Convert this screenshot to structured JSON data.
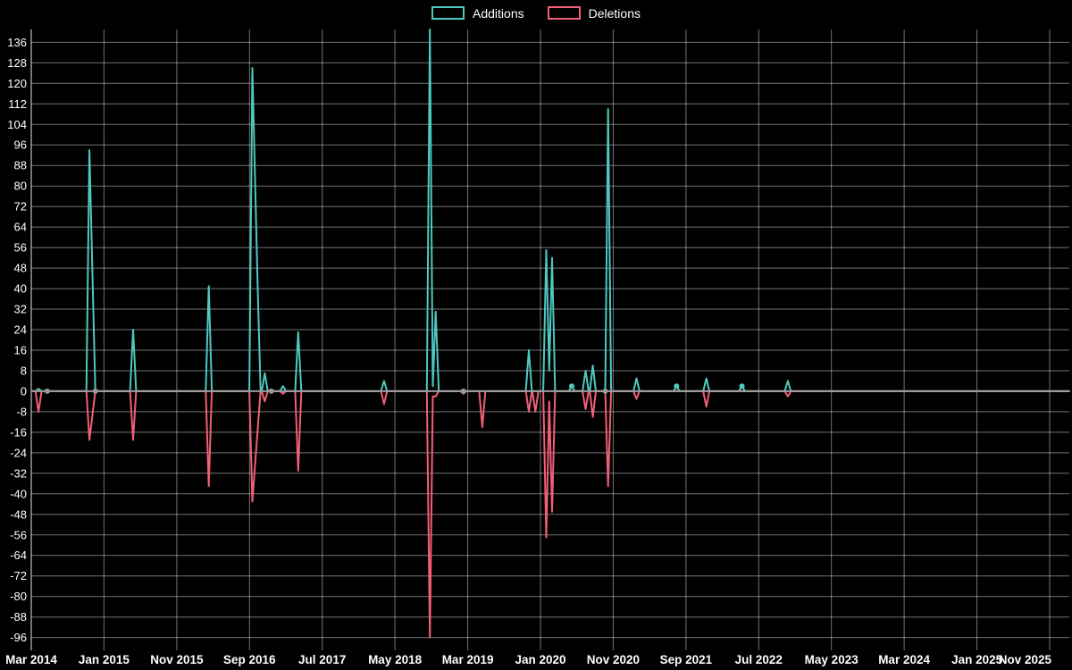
{
  "legend": {
    "items": [
      {
        "label": "Additions",
        "color": "#4ec9c0"
      },
      {
        "label": "Deletions",
        "color": "#f25f77"
      }
    ]
  },
  "chart_data": {
    "type": "line",
    "title": "",
    "xlabel": "",
    "ylabel": "",
    "legend_position": "top",
    "grid": true,
    "background": "#000000",
    "text_color": "#ffffff",
    "grid_color": "rgba(255,255,255,0.45)",
    "axis_color": "#e8e8e8",
    "zero_line_color": "#9e9e9e",
    "marker_color": "#9a9a9a",
    "x_axis": {
      "tick_labels": [
        "Mar 2014",
        "Jan 2015",
        "Nov 2015",
        "Sep 2016",
        "Jul 2017",
        "May 2018",
        "Mar 2019",
        "Jan 2020",
        "Nov 2020",
        "Sep 2021",
        "Jul 2022",
        "May 2023",
        "Mar 2024",
        "Jan 2025",
        "Nov 2025"
      ],
      "months_per_tick": 10
    },
    "y_axis": {
      "min": -96,
      "max": 136,
      "step": 8
    },
    "ylim": [
      -96,
      136
    ],
    "ylim_render": [
      -101,
      141
    ],
    "series": [
      {
        "name": "Additions",
        "key": "a",
        "color": "#4ec9c0"
      },
      {
        "name": "Deletions",
        "key": "d",
        "color": "#f25f77"
      }
    ],
    "points": [
      {
        "m": 1.0,
        "a": 1,
        "d": -8
      },
      {
        "m": 2.2,
        "a": 0,
        "d": 0,
        "dot": true
      },
      {
        "m": 8.0,
        "a": 94,
        "d": -19
      },
      {
        "m": 8.8,
        "a": 0,
        "d": 0,
        "dot": true
      },
      {
        "m": 14.0,
        "a": 24,
        "d": -19
      },
      {
        "m": 24.4,
        "a": 41,
        "d": -37
      },
      {
        "m": 30.4,
        "a": 126,
        "d": -43
      },
      {
        "m": 31.1,
        "a": 44,
        "d": -16
      },
      {
        "m": 32.1,
        "a": 7,
        "d": -4
      },
      {
        "m": 33.0,
        "a": 0,
        "d": 0,
        "dot": true
      },
      {
        "m": 34.6,
        "a": 2,
        "d": -1
      },
      {
        "m": 36.7,
        "a": 23,
        "d": -31
      },
      {
        "m": 48.5,
        "a": 4,
        "d": -5
      },
      {
        "m": 54.8,
        "a": 141,
        "d": -96
      },
      {
        "m": 55.2,
        "a": 2,
        "d": -2
      },
      {
        "m": 55.6,
        "a": 31,
        "d": -2
      },
      {
        "m": 59.4,
        "a": 0,
        "d": -1,
        "dot": true
      },
      {
        "m": 62.0,
        "a": 0,
        "d": -14
      },
      {
        "m": 68.4,
        "a": 16,
        "d": -8
      },
      {
        "m": 69.3,
        "a": 0,
        "d": -8
      },
      {
        "m": 70.8,
        "a": 55,
        "d": -57
      },
      {
        "m": 71.2,
        "a": 8,
        "d": -4
      },
      {
        "m": 71.6,
        "a": 52,
        "d": -47
      },
      {
        "m": 74.3,
        "a": 2,
        "d": 0,
        "dot": true
      },
      {
        "m": 76.2,
        "a": 8,
        "d": -7
      },
      {
        "m": 77.2,
        "a": 10,
        "d": -10
      },
      {
        "m": 78.9,
        "a": 0,
        "d": 0,
        "dot": true
      },
      {
        "m": 79.3,
        "a": 110,
        "d": -37
      },
      {
        "m": 83.2,
        "a": 5,
        "d": -3
      },
      {
        "m": 88.7,
        "a": 2,
        "d": 0,
        "dot": true
      },
      {
        "m": 92.8,
        "a": 5,
        "d": -6
      },
      {
        "m": 97.7,
        "a": 2,
        "d": 0,
        "dot": true
      },
      {
        "m": 104.0,
        "a": 4,
        "d": -2
      }
    ]
  }
}
